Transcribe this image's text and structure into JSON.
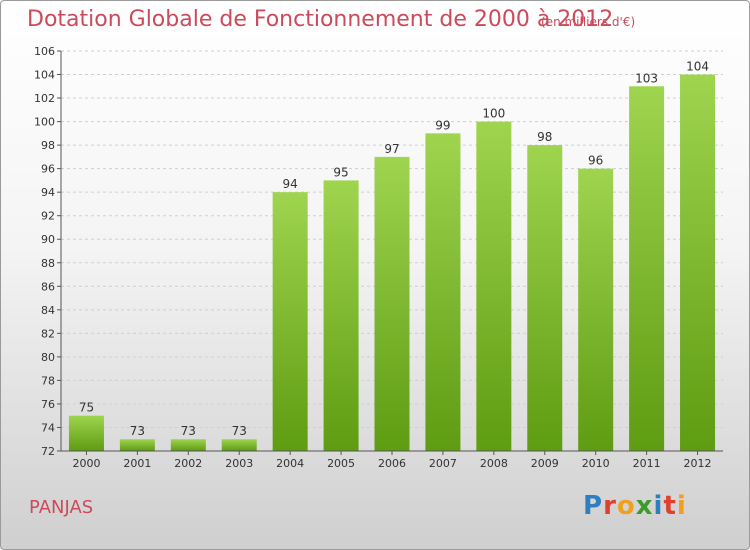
{
  "title": "Dotation Globale de Fonctionnement de 2000 à 2012",
  "subtitle": "(en milliers d'€)",
  "commune": "PANJAS",
  "logo": {
    "letters": [
      "P",
      "r",
      "o",
      "x",
      "i",
      "t",
      "i"
    ],
    "colors": [
      "#2e7fc1",
      "#e0412e",
      "#f0a020",
      "#3a9d2a",
      "#2e7fc1",
      "#e0412e",
      "#f0a020"
    ]
  },
  "colors": {
    "bar_top": "#9fd44f",
    "bar_bottom": "#5e9c12",
    "title": "#cc4a5a"
  },
  "chart_data": {
    "type": "bar",
    "categories": [
      "2000",
      "2001",
      "2002",
      "2003",
      "2004",
      "2005",
      "2006",
      "2007",
      "2008",
      "2009",
      "2010",
      "2011",
      "2012"
    ],
    "values": [
      75,
      73,
      73,
      73,
      94,
      95,
      97,
      99,
      100,
      98,
      96,
      103,
      104
    ],
    "ylim": [
      72,
      106
    ],
    "yticks": [
      72,
      74,
      76,
      78,
      80,
      82,
      84,
      86,
      88,
      90,
      92,
      94,
      96,
      98,
      100,
      102,
      104,
      106
    ],
    "grid": true
  }
}
